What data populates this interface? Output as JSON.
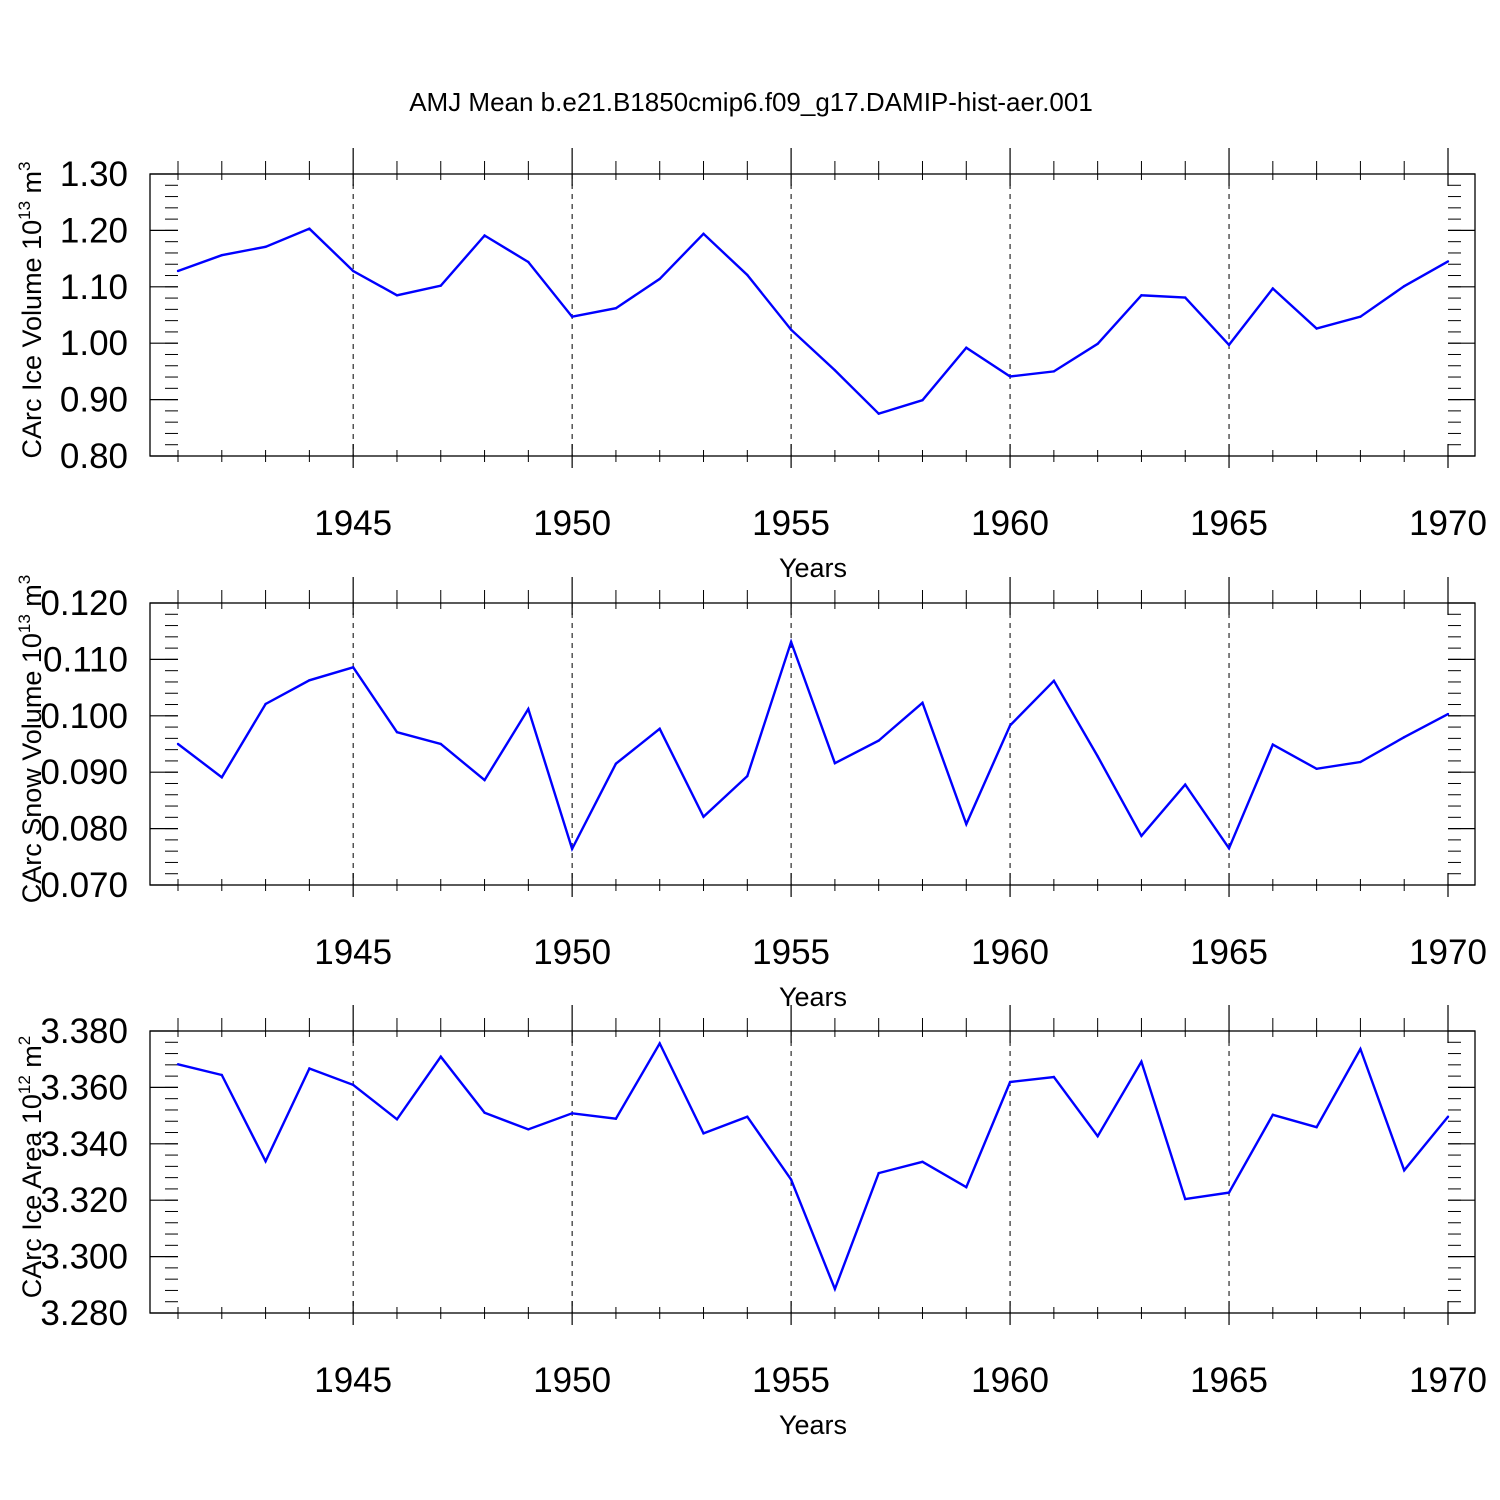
{
  "title": "AMJ Mean b.e21.B1850cmip6.f09_g17.DAMIP-hist-aer.001",
  "line_color": "#0000ff",
  "chart_data": [
    {
      "type": "line",
      "title": "AMJ Mean b.e21.B1850cmip6.f09_g17.DAMIP-hist-aer.001",
      "xlabel": "Years",
      "ylabel": {
        "base": "CArc Ice Volume 10",
        "exp": "13",
        "unit": " m",
        "unit_exp": "3"
      },
      "xlim": [
        1941,
        1970
      ],
      "ylim": [
        0.8,
        1.3
      ],
      "x_ticks": [
        1945,
        1950,
        1955,
        1960,
        1965,
        1970
      ],
      "y_ticks": [
        "0.80",
        "0.90",
        "1.00",
        "1.10",
        "1.20",
        "1.30"
      ],
      "y_decimals": 2,
      "y_major_step": 0.1,
      "y_minor_step": 0.02,
      "x": [
        1941,
        1942,
        1943,
        1944,
        1945,
        1946,
        1947,
        1948,
        1949,
        1950,
        1951,
        1952,
        1953,
        1954,
        1955,
        1956,
        1957,
        1958,
        1959,
        1960,
        1961,
        1962,
        1963,
        1964,
        1965,
        1966,
        1967,
        1968,
        1969,
        1970
      ],
      "series": [
        {
          "values": [
            1.128,
            1.156,
            1.171,
            1.203,
            1.128,
            1.085,
            1.102,
            1.191,
            1.144,
            1.047,
            1.062,
            1.114,
            1.194,
            1.121,
            1.024,
            0.952,
            0.875,
            0.899,
            0.992,
            0.941,
            0.95,
            0.999,
            1.085,
            1.081,
            0.997,
            1.097,
            1.026,
            1.047,
            1.101,
            1.145
          ]
        }
      ],
      "grid": "vertical dashed at major x ticks"
    },
    {
      "type": "line",
      "xlabel": "Years",
      "ylabel": {
        "base": "CArc Snow Volume 10",
        "exp": "13",
        "unit": " m",
        "unit_exp": "3"
      },
      "xlim": [
        1941,
        1970
      ],
      "ylim": [
        0.07,
        0.12
      ],
      "x_ticks": [
        1945,
        1950,
        1955,
        1960,
        1965,
        1970
      ],
      "y_ticks": [
        "0.070",
        "0.080",
        "0.090",
        "0.100",
        "0.110",
        "0.120"
      ],
      "y_decimals": 3,
      "y_major_step": 0.01,
      "y_minor_step": 0.002,
      "x": [
        1941,
        1942,
        1943,
        1944,
        1945,
        1946,
        1947,
        1948,
        1949,
        1950,
        1951,
        1952,
        1953,
        1954,
        1955,
        1956,
        1957,
        1958,
        1959,
        1960,
        1961,
        1962,
        1963,
        1964,
        1965,
        1966,
        1967,
        1968,
        1969,
        1970
      ],
      "series": [
        {
          "values": [
            0.095,
            0.0891,
            0.1021,
            0.1063,
            0.1086,
            0.0971,
            0.095,
            0.0886,
            0.1012,
            0.0764,
            0.0915,
            0.0977,
            0.0821,
            0.0893,
            0.1131,
            0.0916,
            0.0956,
            0.1023,
            0.0808,
            0.0983,
            0.1062,
            0.0928,
            0.0787,
            0.0878,
            0.0765,
            0.0949,
            0.0906,
            0.0918,
            0.0962,
            0.1003
          ]
        }
      ],
      "grid": "vertical dashed at major x ticks"
    },
    {
      "type": "line",
      "xlabel": "Years",
      "ylabel": {
        "base": "CArc Ice Area 10",
        "exp": "12",
        "unit": " m",
        "unit_exp": "2"
      },
      "xlim": [
        1941,
        1970
      ],
      "ylim": [
        3.28,
        3.38
      ],
      "x_ticks": [
        1945,
        1950,
        1955,
        1960,
        1965,
        1970
      ],
      "y_ticks": [
        "3.280",
        "3.300",
        "3.320",
        "3.340",
        "3.360",
        "3.380"
      ],
      "y_decimals": 3,
      "y_major_step": 0.02,
      "y_minor_step": 0.004,
      "x": [
        1941,
        1942,
        1943,
        1944,
        1945,
        1946,
        1947,
        1948,
        1949,
        1950,
        1951,
        1952,
        1953,
        1954,
        1955,
        1956,
        1957,
        1958,
        1959,
        1960,
        1961,
        1962,
        1963,
        1964,
        1965,
        1966,
        1967,
        1968,
        1969,
        1970
      ],
      "series": [
        {
          "values": [
            3.3682,
            3.3644,
            3.3338,
            3.3667,
            3.3609,
            3.3487,
            3.3709,
            3.351,
            3.3451,
            3.3508,
            3.3489,
            3.3756,
            3.3437,
            3.3496,
            3.3273,
            3.2885,
            3.3296,
            3.3336,
            3.3246,
            3.3619,
            3.3637,
            3.3427,
            3.3691,
            3.3204,
            3.3227,
            3.3503,
            3.3459,
            3.3736,
            3.3306,
            3.3496
          ]
        }
      ],
      "grid": "vertical dashed at major x ticks"
    }
  ]
}
